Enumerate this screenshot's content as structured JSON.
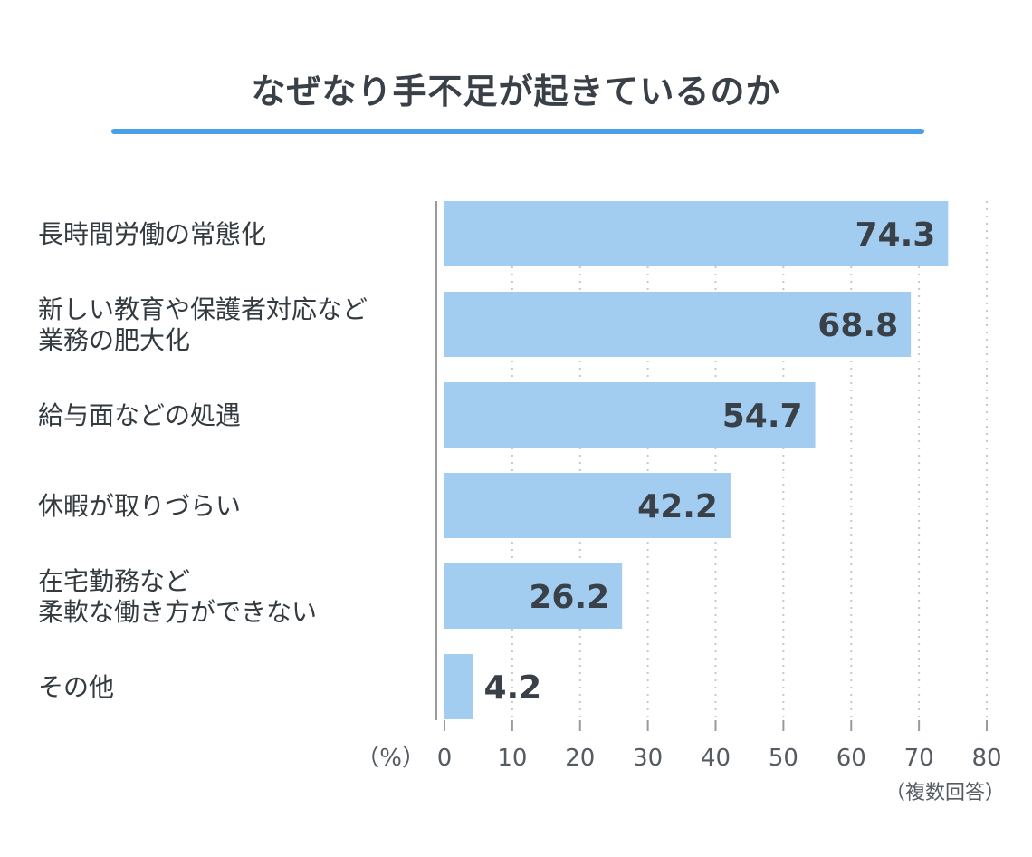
{
  "title": "なぜなり手不足が起きているのか",
  "unit_label": "（%）",
  "note": "（複数回答）",
  "colors": {
    "bar": "#a3cdf0",
    "accent": "#4a9fe6",
    "grid": "#c8c8c8",
    "axis": "#9a9a9a"
  },
  "chart_data": {
    "type": "bar",
    "orientation": "horizontal",
    "title": "なぜなり手不足が起きているのか",
    "categories": [
      [
        "長時間労働の常態化"
      ],
      [
        "新しい教育や保護者対応など",
        "業務の肥大化"
      ],
      [
        "給与面などの処遇"
      ],
      [
        "休暇が取りづらい"
      ],
      [
        "在宅勤務など",
        "柔軟な働き方ができない"
      ],
      [
        "その他"
      ]
    ],
    "values": [
      74.3,
      68.8,
      54.7,
      42.2,
      26.2,
      4.2
    ],
    "value_labels": [
      "74.3",
      "68.8",
      "54.7",
      "42.2",
      "26.2",
      "4.2"
    ],
    "xlim": [
      0,
      80
    ],
    "xticks": [
      "0",
      "10",
      "20",
      "30",
      "40",
      "50",
      "60",
      "70",
      "80"
    ],
    "xlabel": "（%）",
    "grid": true
  }
}
